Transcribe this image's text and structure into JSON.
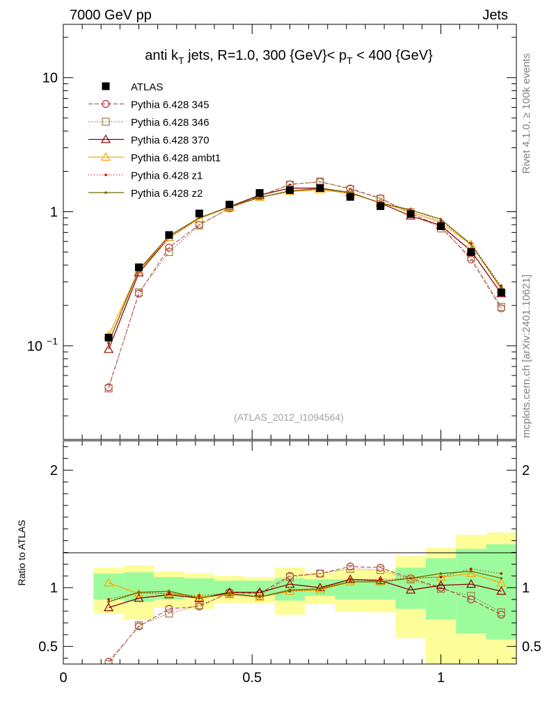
{
  "header": {
    "left": "7000 GeV pp",
    "right": "Jets"
  },
  "side_labels": {
    "rivet": "Rivet 4.1.0, ≥ 100k events",
    "mcplots": "mcplots.cern.ch [arXiv:2401.10621]"
  },
  "watermark": "(ATLAS_2012_I1094564)",
  "colors": {
    "atlas": "#000000",
    "p345": "#b03040",
    "p346": "#a07840",
    "p370": "#8b0000",
    "ambt1": "#ffa500",
    "z1": "#c80000",
    "z2": "#6b6b00",
    "band_inner": "#9cfb9c",
    "band_outer": "#fdfd9a"
  },
  "chart_data": [
    {
      "type": "line",
      "title": "anti k_T jets, R=1.0,  300 {GeV}< p_T < 400 {GeV}",
      "title_parts": {
        "a": "anti k",
        "a_sub": "T",
        "b": " jets, R=1.0,  300 {GeV}< p",
        "b_sub": "T",
        "c": " < 400 {GeV}"
      },
      "yscale": "log",
      "xlim": [
        0,
        1.2
      ],
      "ylim": [
        0.02,
        25
      ],
      "y_ticks": [
        {
          "value": 0.1,
          "label": "10",
          "exp": "−1"
        },
        {
          "value": 1,
          "label": "1"
        },
        {
          "value": 10,
          "label": "10"
        }
      ],
      "x": [
        0.12,
        0.2,
        0.28,
        0.36,
        0.44,
        0.52,
        0.6,
        0.68,
        0.76,
        0.84,
        0.92,
        1.0,
        1.08,
        1.16
      ],
      "legend": [
        "ATLAS",
        "Pythia 6.428 345",
        "Pythia 6.428 346",
        "Pythia 6.428 370",
        "Pythia 6.428 ambt1",
        "Pythia 6.428 z1",
        "Pythia 6.428 z2"
      ],
      "series": [
        {
          "name": "ATLAS",
          "values": [
            0.115,
            0.385,
            0.67,
            0.97,
            1.13,
            1.38,
            1.45,
            1.5,
            1.29,
            1.1,
            0.96,
            0.78,
            0.5,
            0.25
          ]
        },
        {
          "name": "Pythia 6.428 345",
          "values": [
            0.049,
            0.245,
            0.54,
            0.8,
            1.06,
            1.31,
            1.6,
            1.67,
            1.49,
            1.26,
            0.97,
            0.78,
            0.44,
            0.19
          ]
        },
        {
          "name": "Pythia 6.428 346",
          "values": [
            0.048,
            0.25,
            0.5,
            0.79,
            1.07,
            1.31,
            1.59,
            1.68,
            1.47,
            1.25,
            0.99,
            0.75,
            0.46,
            0.195
          ]
        },
        {
          "name": "Pythia 6.428 370",
          "values": [
            0.094,
            0.35,
            0.64,
            0.89,
            1.09,
            1.33,
            1.5,
            1.5,
            1.39,
            1.16,
            0.93,
            0.79,
            0.51,
            0.245
          ]
        },
        {
          "name": "Pythia 6.428 ambt1",
          "values": [
            0.119,
            0.365,
            0.64,
            0.89,
            1.08,
            1.28,
            1.42,
            1.46,
            1.37,
            1.17,
            1.0,
            0.83,
            0.57,
            0.265
          ]
        },
        {
          "name": "Pythia 6.428 z1",
          "values": [
            0.104,
            0.37,
            0.64,
            0.9,
            1.08,
            1.27,
            1.41,
            1.48,
            1.37,
            1.17,
            1.04,
            0.85,
            0.58,
            0.28
          ]
        },
        {
          "name": "Pythia 6.428 z2",
          "values": [
            0.106,
            0.37,
            0.66,
            0.9,
            1.09,
            1.28,
            1.43,
            1.49,
            1.39,
            1.16,
            1.03,
            0.88,
            0.57,
            0.27
          ]
        }
      ]
    },
    {
      "type": "line",
      "ylabel": "Ratio to ATLAS",
      "xlim": [
        0,
        1.2
      ],
      "ylim": [
        0.35,
        2.25
      ],
      "x_ticks": [
        {
          "value": 0,
          "label": "0"
        },
        {
          "value": 0.5,
          "label": "0.5"
        },
        {
          "value": 1,
          "label": "1"
        }
      ],
      "y_ticks": [
        {
          "value": 0.5,
          "label": "0.5"
        },
        {
          "value": 1,
          "label": "1"
        },
        {
          "value": 2,
          "label": "2"
        }
      ],
      "bins": [
        [
          0.08,
          0.16
        ],
        [
          0.16,
          0.24
        ],
        [
          0.24,
          0.32
        ],
        [
          0.32,
          0.4
        ],
        [
          0.4,
          0.48
        ],
        [
          0.48,
          0.56
        ],
        [
          0.56,
          0.64
        ],
        [
          0.64,
          0.72
        ],
        [
          0.72,
          0.8
        ],
        [
          0.8,
          0.88
        ],
        [
          0.88,
          0.96
        ],
        [
          0.96,
          1.04
        ],
        [
          1.04,
          1.12
        ],
        [
          1.12,
          1.2
        ]
      ],
      "band_inner": [
        [
          0.9,
          1.12
        ],
        [
          0.88,
          1.13
        ],
        [
          0.9,
          1.09
        ],
        [
          0.92,
          1.08
        ],
        [
          0.94,
          1.06
        ],
        [
          0.94,
          1.06
        ],
        [
          0.89,
          1.08
        ],
        [
          0.93,
          1.07
        ],
        [
          0.9,
          1.07
        ],
        [
          0.9,
          1.07
        ],
        [
          0.82,
          1.17
        ],
        [
          0.73,
          1.25
        ],
        [
          0.61,
          1.33
        ],
        [
          0.56,
          1.37
        ]
      ],
      "band_outer": [
        [
          0.78,
          1.17
        ],
        [
          0.73,
          1.19
        ],
        [
          0.83,
          1.14
        ],
        [
          0.82,
          1.12
        ],
        [
          0.87,
          1.1
        ],
        [
          0.87,
          1.09
        ],
        [
          0.77,
          1.17
        ],
        [
          0.86,
          1.13
        ],
        [
          0.8,
          1.15
        ],
        [
          0.79,
          1.15
        ],
        [
          0.57,
          1.27
        ],
        [
          0.3,
          1.34
        ],
        [
          0.3,
          1.45
        ],
        [
          0.3,
          1.47
        ]
      ],
      "x": [
        0.12,
        0.2,
        0.28,
        0.36,
        0.44,
        0.52,
        0.6,
        0.68,
        0.76,
        0.84,
        0.92,
        1.0,
        1.08,
        1.16
      ],
      "series": [
        {
          "name": "Pythia 6.428 345",
          "values": [
            0.37,
            0.67,
            0.82,
            0.84,
            0.96,
            0.95,
            1.1,
            1.12,
            1.18,
            1.17,
            1.08,
            1.0,
            0.9,
            0.77
          ]
        },
        {
          "name": "Pythia 6.428 346",
          "values": [
            0.35,
            0.68,
            0.78,
            0.85,
            0.95,
            0.93,
            1.09,
            1.12,
            1.16,
            1.15,
            1.07,
            0.99,
            0.93,
            0.79
          ]
        },
        {
          "name": "Pythia 6.428 370",
          "values": [
            0.83,
            0.91,
            0.94,
            0.91,
            0.96,
            0.96,
            1.03,
            1.0,
            1.07,
            1.06,
            0.98,
            1.02,
            1.03,
            0.97
          ]
        },
        {
          "name": "Pythia 6.428 ambt1",
          "values": [
            1.04,
            0.95,
            0.95,
            0.92,
            0.94,
            0.92,
            0.97,
            0.98,
            1.05,
            1.05,
            1.08,
            1.09,
            1.12,
            1.04
          ]
        },
        {
          "name": "Pythia 6.428 z1",
          "values": [
            0.9,
            0.96,
            0.95,
            0.93,
            0.95,
            0.92,
            0.97,
            0.99,
            1.07,
            1.07,
            1.08,
            1.09,
            1.16,
            1.12
          ]
        },
        {
          "name": "Pythia 6.428 z2",
          "values": [
            0.88,
            0.96,
            0.97,
            0.91,
            0.95,
            0.92,
            0.98,
            0.99,
            1.05,
            1.05,
            1.08,
            1.12,
            1.14,
            1.08
          ]
        }
      ]
    }
  ]
}
